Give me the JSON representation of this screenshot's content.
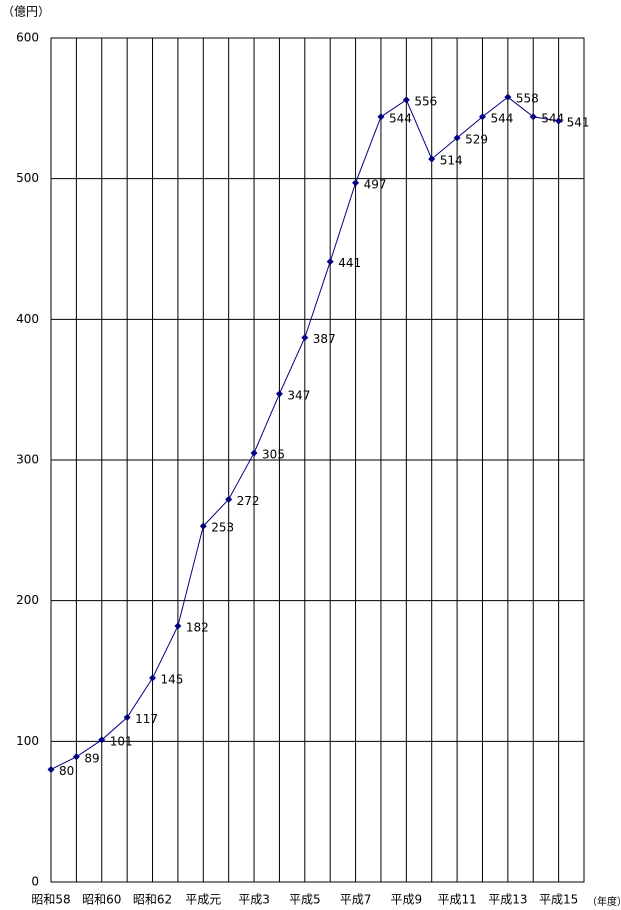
{
  "chart_data": {
    "type": "line",
    "y_unit": "（億円）",
    "x_unit": "（年度）",
    "categories": [
      "昭和58",
      null,
      "昭和60",
      null,
      "昭和62",
      null,
      "平成元",
      null,
      "平成3",
      null,
      "平成5",
      null,
      "平成7",
      null,
      "平成9",
      null,
      "平成11",
      null,
      "平成13",
      null,
      "平成15"
    ],
    "values": [
      80,
      89,
      101,
      117,
      145,
      182,
      253,
      272,
      305,
      347,
      387,
      441,
      497,
      544,
      556,
      514,
      529,
      544,
      558,
      544,
      541
    ],
    "color": "#000080",
    "ylim": [
      0,
      600
    ],
    "yticks": [
      0,
      100,
      200,
      300,
      400,
      500,
      600
    ],
    "grid": true
  }
}
